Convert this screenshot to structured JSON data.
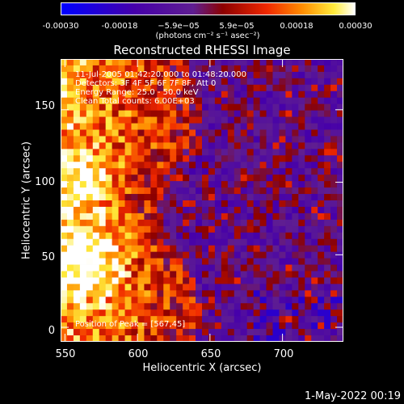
{
  "colorbar": {
    "ticks": [
      "-0.00030",
      "-0.00018",
      "−5.9e−05",
      "5.9e−05",
      "0.00018",
      "0.00030"
    ],
    "units": "(photons cm⁻² s⁻¹ asec⁻²)",
    "range": [
      -0.0003,
      0.0003
    ]
  },
  "chart_data": {
    "type": "heatmap",
    "title": "Reconstructed RHESSI Image",
    "xlabel": "Heliocentric X (arcsec)",
    "ylabel": "Heliocentric Y (arcsec)",
    "xlim": [
      547,
      742
    ],
    "ylim": [
      -10,
      185
    ],
    "xticks": [
      "550",
      "600",
      "650",
      "700"
    ],
    "xtick_values": [
      550,
      600,
      650,
      700
    ],
    "yticks": [
      "0",
      "50",
      "100",
      "150"
    ],
    "ytick_values": [
      0,
      50,
      100,
      150
    ],
    "colormap": "rhessi-diverging (blue-purple-red-orange-yellow-white)",
    "peak": [
      567,
      45
    ],
    "annotations": [
      "11-Jul-2005 01:42:20.000 to 01:48:20.000",
      "Detectors: 3F 4F 5F 6F 7F 8F, Att 0",
      "Energy Range: 25.0 - 50.0 keV",
      "Clean     Total counts: 6.00E+03",
      "Position of Peak = [567,45]"
    ]
  },
  "timestamp": "1-May-2022 00:19"
}
